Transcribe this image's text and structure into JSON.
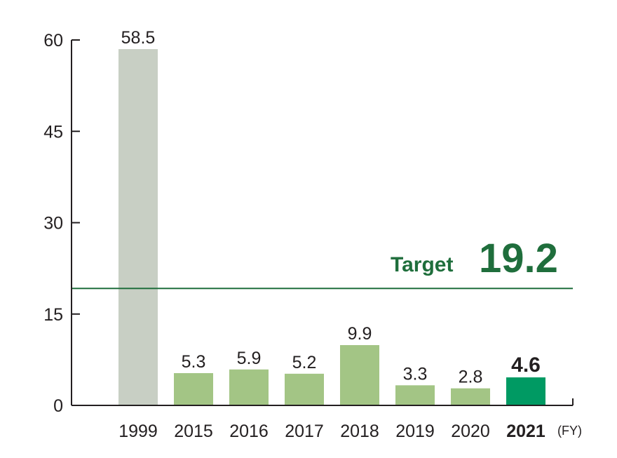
{
  "chart_data": {
    "type": "bar",
    "categories": [
      "1999",
      "2015",
      "2016",
      "2017",
      "2018",
      "2019",
      "2020",
      "2021"
    ],
    "values": [
      58.5,
      5.3,
      5.9,
      5.2,
      9.9,
      3.3,
      2.8,
      4.6
    ],
    "value_labels": [
      "58.5",
      "5.3",
      "5.9",
      "5.2",
      "9.9",
      "3.3",
      "2.8",
      "4.6"
    ],
    "highlight_index": 7,
    "ylim": [
      0,
      60
    ],
    "yticks": [
      0,
      15,
      30,
      45,
      60
    ],
    "x_unit": "(FY)",
    "grid": false,
    "legend": "none",
    "target": {
      "label": "Target",
      "value": 19.2,
      "value_label": "19.2"
    },
    "colors": {
      "baseline_bar": "#c8cfc4",
      "bar": "#a3c585",
      "highlight_bar": "#009a63",
      "target": "#1f6e3c",
      "axis": "#231f20"
    }
  }
}
